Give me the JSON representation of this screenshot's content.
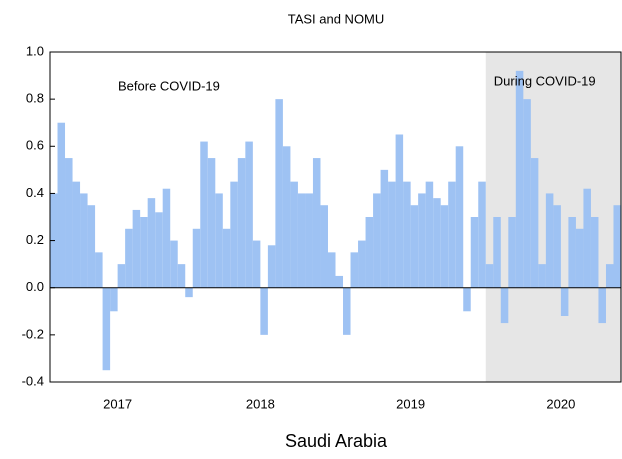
{
  "chart_data": {
    "type": "bar",
    "title": "TASI and NOMU",
    "x_label": "Saudi Arabia",
    "annotations": [
      "Before COVID-19",
      "During COVID-19"
    ],
    "shaded_region": [
      2020.0,
      2020.9
    ],
    "color": "#9ec2f3",
    "x": [
      2017.1,
      2017.15,
      2017.2,
      2017.25,
      2017.3,
      2017.35,
      2017.4,
      2017.45,
      2017.5,
      2017.55,
      2017.6,
      2017.65,
      2017.7,
      2017.75,
      2017.8,
      2017.85,
      2017.9,
      2017.95,
      2018.0,
      2018.05,
      2018.1,
      2018.15,
      2018.2,
      2018.25,
      2018.3,
      2018.35,
      2018.4,
      2018.45,
      2018.5,
      2018.55,
      2018.6,
      2018.65,
      2018.7,
      2018.75,
      2018.8,
      2018.85,
      2018.9,
      2018.95,
      2019.0,
      2019.05,
      2019.1,
      2019.15,
      2019.2,
      2019.25,
      2019.3,
      2019.35,
      2019.4,
      2019.45,
      2019.5,
      2019.55,
      2019.6,
      2019.65,
      2019.7,
      2019.75,
      2019.8,
      2019.85,
      2019.9,
      2019.95,
      2020.0,
      2020.05,
      2020.1,
      2020.15,
      2020.2,
      2020.25,
      2020.3,
      2020.35,
      2020.4,
      2020.45,
      2020.5,
      2020.55,
      2020.6,
      2020.65,
      2020.7,
      2020.75,
      2020.8,
      2020.85
    ],
    "values": [
      0.4,
      0.7,
      0.55,
      0.45,
      0.4,
      0.35,
      0.15,
      -0.35,
      -0.1,
      0.1,
      0.25,
      0.33,
      0.3,
      0.38,
      0.32,
      0.42,
      0.2,
      0.1,
      -0.04,
      0.25,
      0.62,
      0.55,
      0.4,
      0.25,
      0.45,
      0.55,
      0.62,
      0.2,
      -0.2,
      0.18,
      0.8,
      0.6,
      0.45,
      0.4,
      0.4,
      0.55,
      0.35,
      0.15,
      0.05,
      -0.2,
      0.15,
      0.2,
      0.3,
      0.4,
      0.5,
      0.45,
      0.65,
      0.45,
      0.35,
      0.4,
      0.45,
      0.38,
      0.35,
      0.45,
      0.6,
      -0.1,
      0.3,
      0.45,
      0.1,
      0.3,
      -0.15,
      0.3,
      0.92,
      0.8,
      0.55,
      0.1,
      0.4,
      0.35,
      -0.12,
      0.3,
      0.25,
      0.42,
      0.3,
      -0.15,
      0.1,
      0.35
    ],
    "xlim": [
      2017.1,
      2020.9
    ],
    "xticks": [
      {
        "value": 2017.55,
        "label": "2017"
      },
      {
        "value": 2018.5,
        "label": "2018"
      },
      {
        "value": 2019.5,
        "label": "2019"
      },
      {
        "value": 2020.5,
        "label": "2020"
      }
    ],
    "ylim": [
      -0.4,
      1.0
    ],
    "yticks": [
      {
        "value": -0.4,
        "label": "-0.4"
      },
      {
        "value": -0.2,
        "label": "-0.2"
      },
      {
        "value": 0,
        "label": "0.0"
      },
      {
        "value": 0.2,
        "label": "0.2"
      },
      {
        "value": 0.4,
        "label": "0.4"
      },
      {
        "value": 0.6,
        "label": "0.6"
      },
      {
        "value": 0.8,
        "label": "0.8"
      },
      {
        "value": 1.0,
        "label": "1.0"
      }
    ]
  }
}
